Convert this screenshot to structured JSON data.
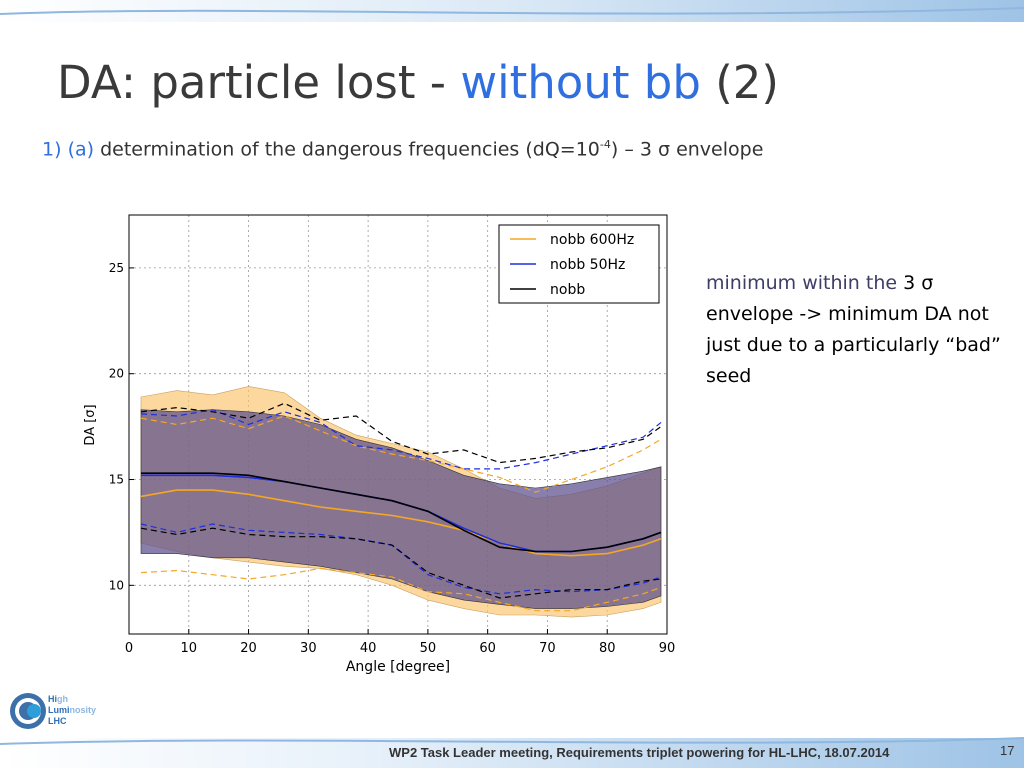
{
  "slide": {
    "title_prefix": "DA: particle lost - ",
    "title_highlight": "without bb",
    "title_suffix": " (2)",
    "item_number": "1)",
    "item_tag": "(a)",
    "item_text_before": " determination of the dangerous frequencies (dQ=10",
    "item_exponent": "-4",
    "item_text_after": ") – 3 σ envelope",
    "note_part1": "minimum within the ",
    "note_part2": "3 σ envelope -> minimum DA not just due to a particularly “bad” seed",
    "footer": "WP2 Task Leader meeting, Requirements triplet powering for HL-LHC, 18.07.2014",
    "page_number": "17",
    "logo_line1_prefix": "Hi",
    "logo_line1_suffix": "gh",
    "logo_line2_prefix": "Lumi",
    "logo_line2_suffix": "nosity",
    "logo_line3": "LHC"
  },
  "colors": {
    "orange": "#f5a623",
    "orange_band": "#fbc36a",
    "blue": "#1f2ee0",
    "purple_band": "#5a4d8c",
    "black": "#000000",
    "accent_blue": "#2f6fe0",
    "top_band": "#9ec3e6"
  },
  "chart_data": {
    "type": "line",
    "xlabel": "Angle [degree]",
    "ylabel": "DA [σ]",
    "xlim": [
      0,
      90
    ],
    "ylim": [
      7.7,
      27.5
    ],
    "xticks": [
      0,
      10,
      20,
      30,
      40,
      50,
      60,
      70,
      80,
      90
    ],
    "yticks": [
      10,
      15,
      20,
      25
    ],
    "grid": true,
    "legend_position": "top-right",
    "x": [
      2,
      8,
      14,
      20,
      26,
      32,
      38,
      44,
      50,
      56,
      62,
      68,
      74,
      80,
      86,
      89
    ],
    "series": [
      {
        "name": "nobb 600Hz",
        "color": "orange",
        "mean": [
          14.2,
          14.5,
          14.5,
          14.3,
          14.0,
          13.7,
          13.5,
          13.3,
          13.0,
          12.6,
          12.0,
          11.5,
          11.4,
          11.5,
          11.9,
          12.2
        ],
        "upper": [
          17.9,
          17.6,
          17.9,
          17.4,
          18.0,
          17.3,
          16.6,
          16.2,
          15.9,
          15.5,
          15.1,
          14.4,
          15.0,
          15.6,
          16.4,
          16.9
        ],
        "lower": [
          10.6,
          10.7,
          10.5,
          10.3,
          10.5,
          10.8,
          10.6,
          10.4,
          9.7,
          9.6,
          9.2,
          8.8,
          8.8,
          9.2,
          9.6,
          9.9
        ],
        "band_upper": [
          18.9,
          19.2,
          19.0,
          19.4,
          19.1,
          17.9,
          17.1,
          16.7,
          16.3,
          15.5,
          14.6,
          14.1,
          14.3,
          14.7,
          15.3,
          15.6
        ],
        "band_lower": [
          12.0,
          11.6,
          11.3,
          11.1,
          10.9,
          10.8,
          10.5,
          10.0,
          9.3,
          8.9,
          8.6,
          8.6,
          8.5,
          8.6,
          8.9,
          9.2
        ]
      },
      {
        "name": "nobb 50Hz",
        "color": "blue",
        "mean": [
          15.2,
          15.2,
          15.2,
          15.1,
          14.9,
          14.6,
          14.3,
          14.0,
          13.5,
          12.7,
          12.0,
          11.6,
          11.6,
          11.8,
          12.2,
          12.5
        ],
        "upper": [
          18.1,
          18.0,
          18.3,
          17.6,
          18.2,
          17.7,
          16.6,
          16.4,
          16.0,
          15.5,
          15.5,
          15.8,
          16.2,
          16.6,
          17.0,
          17.7
        ],
        "lower": [
          12.9,
          12.5,
          12.9,
          12.6,
          12.5,
          12.4,
          12.2,
          11.9,
          10.5,
          9.9,
          9.6,
          9.8,
          9.7,
          9.8,
          10.1,
          10.4
        ]
      },
      {
        "name": "nobb",
        "color": "black",
        "mean": [
          15.3,
          15.3,
          15.3,
          15.2,
          14.9,
          14.6,
          14.3,
          14.0,
          13.5,
          12.6,
          11.8,
          11.6,
          11.6,
          11.8,
          12.2,
          12.5
        ],
        "upper": [
          18.2,
          18.4,
          18.2,
          17.9,
          18.6,
          17.8,
          18.0,
          16.8,
          16.2,
          16.4,
          15.8,
          16.0,
          16.3,
          16.5,
          16.9,
          17.5
        ],
        "lower": [
          12.7,
          12.4,
          12.7,
          12.4,
          12.3,
          12.3,
          12.2,
          11.9,
          10.6,
          10.0,
          9.4,
          9.6,
          9.8,
          9.8,
          10.2,
          10.3
        ],
        "band_upper": [
          18.3,
          18.2,
          18.3,
          18.2,
          18.0,
          17.6,
          16.9,
          16.5,
          15.9,
          15.2,
          14.8,
          14.6,
          14.8,
          15.1,
          15.4,
          15.6
        ],
        "band_lower": [
          11.5,
          11.5,
          11.3,
          11.3,
          11.1,
          10.9,
          10.6,
          10.3,
          9.7,
          9.3,
          9.1,
          8.9,
          8.9,
          9.0,
          9.2,
          9.5
        ]
      }
    ]
  }
}
